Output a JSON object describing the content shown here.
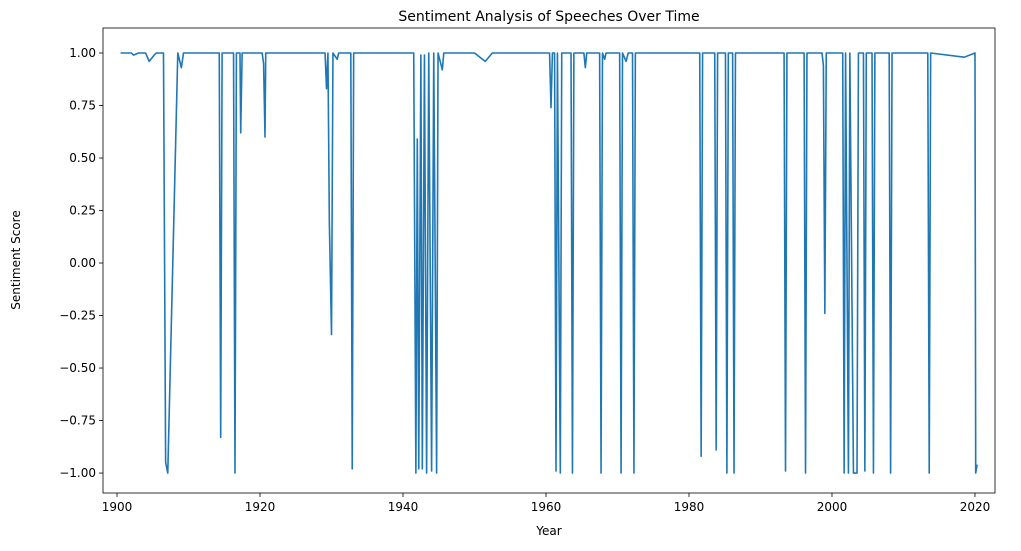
{
  "chart_data": {
    "type": "line",
    "title": "Sentiment Analysis of Speeches Over Time",
    "xlabel": "Year",
    "ylabel": "Sentiment Score",
    "x": [
      1900.5,
      1902,
      1902.3,
      1903,
      1904,
      1904.5,
      1905.2,
      1905.5,
      1906.5,
      1906.8,
      1907.1,
      1908.5,
      1909,
      1909.3,
      1914.3,
      1914.5,
      1914.7,
      1916.3,
      1916.5,
      1916.7,
      1917.2,
      1917.3,
      1917.5,
      1920.3,
      1920.5,
      1920.7,
      1920.8,
      1929.1,
      1929.3,
      1929.5,
      1929.7,
      1930,
      1930.2,
      1930.8,
      1931,
      1932.7,
      1932.9,
      1933.1,
      1941.5,
      1941.8,
      1942,
      1942.2,
      1942.5,
      1942.7,
      1943,
      1943.3,
      1943.6,
      1944,
      1944.3,
      1944.7,
      1944.9,
      1945.5,
      1945.7,
      1950,
      1951.5,
      1952.5,
      1960.5,
      1960.7,
      1960.9,
      1961.2,
      1961.4,
      1961.6,
      1962,
      1962.2,
      1963.5,
      1963.7,
      1963.9,
      1965.3,
      1965.5,
      1965.7,
      1967.5,
      1967.7,
      1967.9,
      1968.2,
      1968.4,
      1970.3,
      1970.5,
      1970.7,
      1971.2,
      1971.5,
      1972.1,
      1972.3,
      1972.5,
      1981.5,
      1981.7,
      1981.9,
      1983.6,
      1983.8,
      1984,
      1985.1,
      1985.3,
      1985.5,
      1986.1,
      1986.3,
      1986.5,
      1993.3,
      1993.5,
      1993.7,
      1996.1,
      1996.3,
      1996.5,
      1998.6,
      1998.8,
      1999,
      1999.2,
      2001.5,
      2001.7,
      2001.9,
      2002.3,
      2002.5,
      2003,
      2003.5,
      2003.7,
      2004.4,
      2004.6,
      2004.8,
      2005.6,
      2005.8,
      2006,
      2008,
      2008.2,
      2008.4,
      2013.4,
      2013.6,
      2013.8,
      2018.5,
      2020,
      2020.1,
      2020.3
    ],
    "series": [
      {
        "color": "#1f77b4",
        "values": [
          1,
          1,
          0.99,
          1,
          1,
          0.96,
          0.99,
          1,
          1,
          -0.95,
          -1,
          1,
          0.93,
          1,
          1,
          -0.83,
          1,
          1,
          -1,
          1,
          1,
          0.62,
          1,
          1,
          0.95,
          0.6,
          1,
          1,
          0.83,
          1,
          0.19,
          -0.34,
          1,
          0.97,
          1,
          1,
          -0.98,
          1,
          1,
          -1,
          0.59,
          -0.98,
          0.99,
          -0.98,
          0.99,
          -1,
          1,
          -0.99,
          1,
          -1,
          1,
          0.92,
          1,
          1,
          0.96,
          1,
          1,
          0.74,
          1,
          1,
          -0.99,
          1,
          -1,
          1,
          1,
          -1,
          1,
          1,
          0.93,
          1,
          1,
          -1,
          1,
          0.97,
          1,
          1,
          -1,
          1,
          0.96,
          1,
          1,
          -1,
          1,
          1,
          -0.92,
          1,
          1,
          -0.89,
          1,
          1,
          -1,
          1,
          1,
          -1,
          1,
          1,
          -0.99,
          1,
          1,
          -1,
          1,
          1,
          0.94,
          -0.24,
          1,
          1,
          -1,
          1,
          -1,
          1,
          -1,
          -1,
          1,
          1,
          -0.99,
          1,
          1,
          -1,
          1,
          1,
          -1,
          1,
          1,
          -1,
          1,
          0.98,
          1,
          -1,
          -0.96
        ]
      }
    ],
    "xlim": [
      1898.04,
      2022.8
    ],
    "ylim": [
      -1.095,
      1.119
    ],
    "xticks": [
      1900,
      1920,
      1940,
      1960,
      1980,
      2000,
      2020
    ],
    "yticks": [
      {
        "value": -1,
        "label": "−1.00"
      },
      {
        "value": -0.75,
        "label": "−0.75"
      },
      {
        "value": -0.5,
        "label": "−0.50"
      },
      {
        "value": -0.25,
        "label": "−0.25"
      },
      {
        "value": 0,
        "label": "0.00"
      },
      {
        "value": 0.25,
        "label": "0.25"
      },
      {
        "value": 0.5,
        "label": "0.50"
      },
      {
        "value": 0.75,
        "label": "0.75"
      },
      {
        "value": 1,
        "label": "1.00"
      }
    ],
    "grid": false
  }
}
